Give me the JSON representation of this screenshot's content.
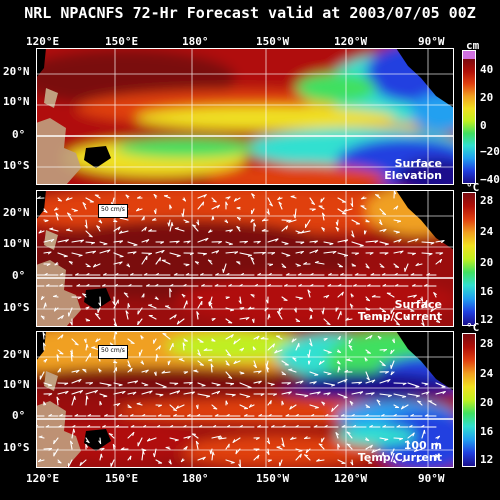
{
  "title": "NRL NPACNFS 72-Hr Forecast valid at 2003/07/05 00Z",
  "lon_labels": [
    "120°E",
    "150°E",
    "180°",
    "150°W",
    "120°W",
    "90°W"
  ],
  "lat_labels": [
    "20°N",
    "10°N",
    "0°",
    "10°S"
  ],
  "panels": [
    {
      "id": "surface-elevation",
      "label_line1": "Surface",
      "label_line2": "Elevation",
      "unit": "cm",
      "colorbar_ticks": [
        "40",
        "20",
        "0",
        "−20",
        "−40"
      ],
      "scale_label": ""
    },
    {
      "id": "surface-temp-current",
      "label_line1": "Surface",
      "label_line2": "Temp/Current",
      "unit": "°C",
      "colorbar_ticks": [
        "28",
        "24",
        "20",
        "16",
        "12"
      ],
      "scale_label": "50 cm/s"
    },
    {
      "id": "100m-temp-current",
      "label_line1": "100 m",
      "label_line2": "Temp/Current",
      "unit": "°C",
      "colorbar_ticks": [
        "28",
        "24",
        "20",
        "16",
        "12"
      ],
      "scale_label": "50 cm/s"
    }
  ],
  "colors": {
    "palette": [
      "#1a0f8c",
      "#2040e0",
      "#20a0f0",
      "#30e0d0",
      "#40e060",
      "#c0f020",
      "#f0e020",
      "#f0a020",
      "#e04010",
      "#b01008",
      "#7a0a10",
      "#d070e0"
    ],
    "land": "#c0a080",
    "grid": "#ffffff"
  }
}
